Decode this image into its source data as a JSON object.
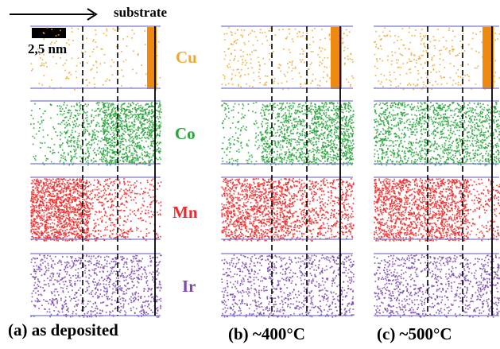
{
  "header": {
    "direction_label": "substrate",
    "scale_label": "2,5 nm"
  },
  "elements": [
    {
      "symbol": "Cu",
      "color": "#f0a830"
    },
    {
      "symbol": "Co",
      "color": "#27a33a"
    },
    {
      "symbol": "Mn",
      "color": "#ee2a2a"
    },
    {
      "symbol": "Ir",
      "color": "#7a48b0"
    }
  ],
  "panels": [
    {
      "label": "(a) as deposited"
    },
    {
      "label": "(b) ~400°C"
    },
    {
      "label": "(c) ~500°C"
    }
  ],
  "colors": {
    "separator": "#7a7ad0",
    "cu_substrate": "#ee8a10"
  }
}
